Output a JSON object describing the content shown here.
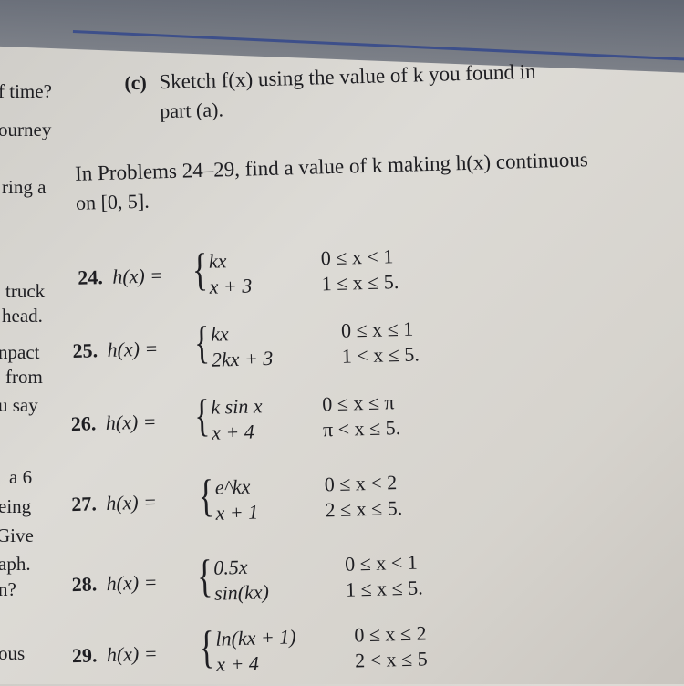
{
  "margin_fragments": [
    "f time?",
    "ourney",
    "ring a",
    "truck",
    "head.",
    "npact",
    "from",
    "u say",
    "a 6",
    "eing",
    "Give",
    "aph.",
    "n?",
    "ous"
  ],
  "part_c": {
    "label": "(c)",
    "text": "Sketch f(x) using the value of k you found in",
    "text2": "part (a)."
  },
  "instructions": {
    "line1": "In Problems 24–29, find a value of k making h(x) continuous",
    "line2": "on [0, 5]."
  },
  "problems": [
    {
      "number": "24.",
      "lhs": "h(x) =",
      "cases": [
        {
          "expr": "kx",
          "cond": "0 ≤ x < 1"
        },
        {
          "expr": "x + 3",
          "cond": "1 ≤ x ≤ 5."
        }
      ]
    },
    {
      "number": "25.",
      "lhs": "h(x) =",
      "cases": [
        {
          "expr": "kx",
          "cond": "0 ≤ x ≤ 1"
        },
        {
          "expr": "2kx + 3",
          "cond": "1 < x ≤ 5."
        }
      ]
    },
    {
      "number": "26.",
      "lhs": "h(x) =",
      "cases": [
        {
          "expr": "k sin x",
          "cond": "0 ≤ x ≤ π"
        },
        {
          "expr": "x + 4",
          "cond": "π < x ≤ 5."
        }
      ]
    },
    {
      "number": "27.",
      "lhs": "h(x) =",
      "cases": [
        {
          "expr": "e^kx",
          "cond": "0 ≤ x < 2"
        },
        {
          "expr": "x + 1",
          "cond": "2 ≤ x ≤ 5."
        }
      ]
    },
    {
      "number": "28.",
      "lhs": "h(x) =",
      "cases": [
        {
          "expr": "0.5x",
          "cond": "0 ≤ x < 1"
        },
        {
          "expr": "sin(kx)",
          "cond": "1 ≤ x ≤ 5."
        }
      ]
    },
    {
      "number": "29.",
      "lhs": "h(x) =",
      "cases": [
        {
          "expr": "ln(kx + 1)",
          "cond": "0 ≤ x ≤ 2"
        },
        {
          "expr": "x + 4",
          "cond": "2 < x ≤ 5"
        }
      ]
    }
  ]
}
